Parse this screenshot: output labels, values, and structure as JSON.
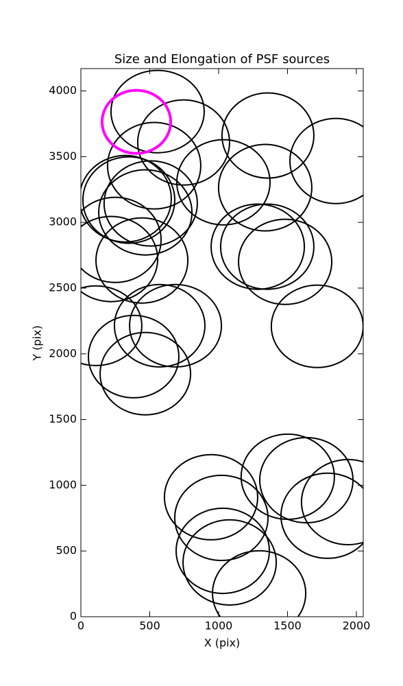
{
  "chart_data": {
    "type": "ellipse",
    "title": "Size and Elongation of PSF sources",
    "x_label": "X (pix)",
    "y_label": "Y (pix)",
    "xlim": [
      0,
      2050
    ],
    "ylim": [
      0,
      4170
    ],
    "xticks": [
      0,
      500,
      1000,
      1500,
      2000
    ],
    "yticks": [
      0,
      500,
      1000,
      1500,
      2000,
      2500,
      3000,
      3500,
      4000
    ],
    "series": [
      {
        "color": "#000000",
        "linewidth": 2,
        "x": [
          557,
          746,
          1358,
          1851,
          532,
          1035,
          1338,
          323,
          348,
          507,
          468,
          1284,
          1353,
          1483,
          249,
          443,
          219,
          109,
          1716,
          572,
          687,
          383,
          468,
          945,
          1020,
          1030,
          1080,
          1294,
          1502,
          1637,
          1940,
          1791
        ],
        "y": [
          3843,
          3608,
          3661,
          3467,
          3431,
          3305,
          3264,
          3180,
          3170,
          3144,
          3076,
          2815,
          2815,
          2700,
          2867,
          2710,
          2721,
          2214,
          2209,
          2214,
          2214,
          1979,
          1849,
          909,
          752,
          501,
          413,
          178,
          1065,
          1039,
          872,
          768
        ],
        "width": [
          677,
          667,
          667,
          667,
          677,
          677,
          677,
          667,
          667,
          677,
          677,
          677,
          677,
          677,
          667,
          667,
          677,
          667,
          667,
          657,
          667,
          657,
          657,
          677,
          677,
          677,
          677,
          677,
          677,
          677,
          677,
          677
        ],
        "height": [
          627,
          648,
          648,
          648,
          658,
          648,
          658,
          658,
          658,
          648,
          648,
          648,
          648,
          648,
          648,
          648,
          648,
          606,
          627,
          627,
          627,
          627,
          627,
          648,
          648,
          648,
          648,
          648,
          648,
          648,
          648,
          648
        ]
      },
      {
        "color": "#ff00ff",
        "linewidth": 4,
        "x": [
          403
        ],
        "y": [
          3765
        ],
        "width": [
          498
        ],
        "height": [
          480
        ]
      }
    ]
  }
}
